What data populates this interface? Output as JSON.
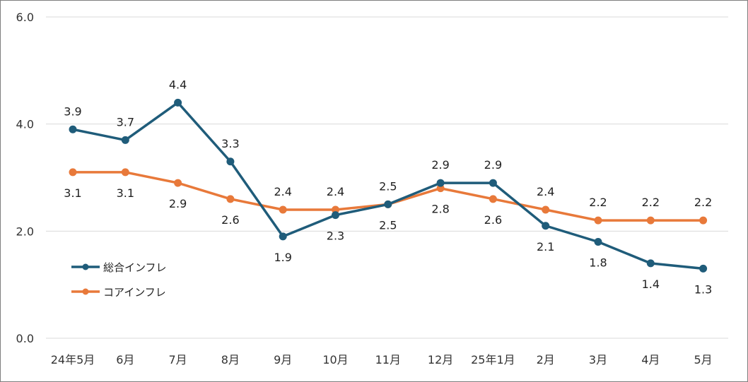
{
  "chart_data": {
    "type": "line",
    "title": "",
    "xlabel": "",
    "ylabel": "",
    "categories": [
      "24年5月",
      "6月",
      "7月",
      "8月",
      "9月",
      "10月",
      "11月",
      "12月",
      "25年1月",
      "2月",
      "3月",
      "4月",
      "5月"
    ],
    "y_ticks": [
      "0.0",
      "2.0",
      "4.0",
      "6.0"
    ],
    "ylim": [
      0,
      6
    ],
    "grid": true,
    "legend_position": "left",
    "series": [
      {
        "name": "総合インフレ",
        "color": "#1f5c7a",
        "values": [
          3.9,
          3.7,
          4.4,
          3.3,
          1.9,
          2.3,
          2.5,
          2.9,
          2.9,
          2.1,
          1.8,
          1.4,
          1.3
        ],
        "labels": [
          "3.9",
          "3.7",
          "4.4",
          "3.3",
          "1.9",
          "2.3",
          "2.5",
          "2.9",
          "2.9",
          "2.1",
          "1.8",
          "1.4",
          "1.3"
        ]
      },
      {
        "name": "コアインフレ",
        "color": "#e8793a",
        "values": [
          3.1,
          3.1,
          2.9,
          2.6,
          2.4,
          2.4,
          2.5,
          2.8,
          2.6,
          2.4,
          2.2,
          2.2,
          2.2
        ],
        "labels": [
          "3.1",
          "3.1",
          "2.9",
          "2.6",
          "2.4",
          "2.4",
          "2.5",
          "2.8",
          "2.6",
          "2.4",
          "2.2",
          "2.2",
          "2.2"
        ]
      }
    ]
  }
}
